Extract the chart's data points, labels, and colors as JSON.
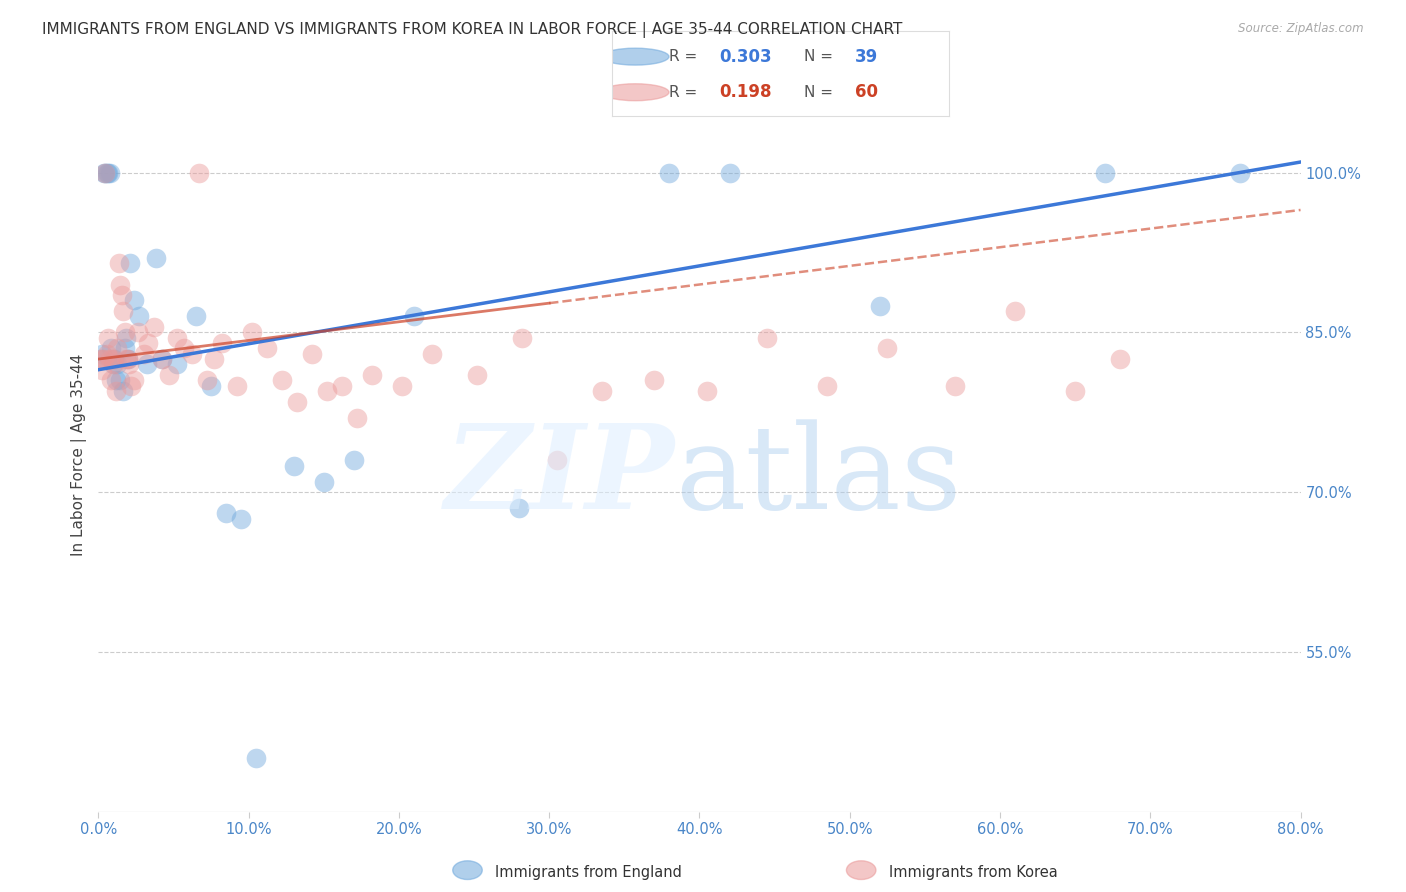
{
  "title": "IMMIGRANTS FROM ENGLAND VS IMMIGRANTS FROM KOREA IN LABOR FORCE | AGE 35-44 CORRELATION CHART",
  "source": "Source: ZipAtlas.com",
  "ylabel": "In Labor Force | Age 35-44",
  "right_yticks": [
    55.0,
    70.0,
    85.0,
    100.0
  ],
  "xlim": [
    0.0,
    80.0
  ],
  "ylim": [
    40.0,
    107.0
  ],
  "england_R": 0.303,
  "england_N": 39,
  "korea_R": 0.198,
  "korea_N": 60,
  "england_color": "#6fa8dc",
  "korea_color": "#ea9999",
  "england_line_color": "#3c78d8",
  "korea_line_color": "#cc4125",
  "eng_line_x0": 0,
  "eng_line_y0": 81.5,
  "eng_line_x1": 80,
  "eng_line_y1": 101.0,
  "kor_line_x0": 0,
  "kor_line_y0": 82.5,
  "kor_line_x1": 80,
  "kor_line_y1": 96.5,
  "kor_dashed_x0": 30,
  "kor_dashed_y0": 87.0,
  "kor_dashed_x1": 80,
  "kor_dashed_y1": 96.5,
  "england_x": [
    0.15,
    0.25,
    0.35,
    0.45,
    0.55,
    0.65,
    0.75,
    0.85,
    0.95,
    1.05,
    1.15,
    1.25,
    1.45,
    1.65,
    1.75,
    1.85,
    1.95,
    2.1,
    2.4,
    2.7,
    3.2,
    3.8,
    4.2,
    5.2,
    6.5,
    7.5,
    8.5,
    9.5,
    10.5,
    13.0,
    15.0,
    17.0,
    21.0,
    28.0,
    38.0,
    42.0,
    52.0,
    67.0,
    76.0
  ],
  "england_y": [
    82.5,
    83.0,
    100.0,
    100.0,
    100.0,
    100.0,
    100.0,
    83.5,
    82.0,
    82.5,
    80.5,
    82.0,
    80.5,
    79.5,
    83.5,
    84.5,
    82.5,
    91.5,
    88.0,
    86.5,
    82.0,
    92.0,
    82.5,
    82.0,
    86.5,
    80.0,
    68.0,
    67.5,
    45.0,
    72.5,
    71.0,
    73.0,
    86.5,
    68.5,
    100.0,
    100.0,
    87.5,
    100.0,
    100.0
  ],
  "korea_x": [
    0.15,
    0.25,
    0.35,
    0.45,
    0.55,
    0.65,
    0.75,
    0.85,
    0.95,
    1.05,
    1.15,
    1.25,
    1.35,
    1.45,
    1.55,
    1.65,
    1.75,
    1.85,
    1.95,
    2.05,
    2.15,
    2.35,
    2.65,
    3.05,
    3.3,
    3.7,
    4.2,
    4.7,
    5.2,
    5.7,
    6.2,
    6.7,
    7.2,
    7.7,
    8.2,
    9.2,
    10.2,
    11.2,
    12.2,
    13.2,
    14.2,
    15.2,
    16.2,
    17.2,
    18.2,
    20.2,
    22.2,
    25.2,
    28.2,
    30.5,
    33.5,
    37.0,
    40.5,
    44.5,
    48.5,
    52.5,
    57.0,
    61.0,
    65.0,
    68.0
  ],
  "korea_y": [
    82.5,
    81.5,
    82.5,
    100.0,
    83.0,
    84.5,
    82.5,
    80.5,
    82.5,
    82.0,
    79.5,
    83.5,
    91.5,
    89.5,
    88.5,
    87.0,
    85.0,
    82.5,
    82.5,
    82.0,
    80.0,
    80.5,
    85.0,
    83.0,
    84.0,
    85.5,
    82.5,
    81.0,
    84.5,
    83.5,
    83.0,
    100.0,
    80.5,
    82.5,
    84.0,
    80.0,
    85.0,
    83.5,
    80.5,
    78.5,
    83.0,
    79.5,
    80.0,
    77.0,
    81.0,
    80.0,
    83.0,
    81.0,
    84.5,
    73.0,
    79.5,
    80.5,
    79.5,
    84.5,
    80.0,
    83.5,
    80.0,
    87.0,
    79.5,
    82.5
  ]
}
